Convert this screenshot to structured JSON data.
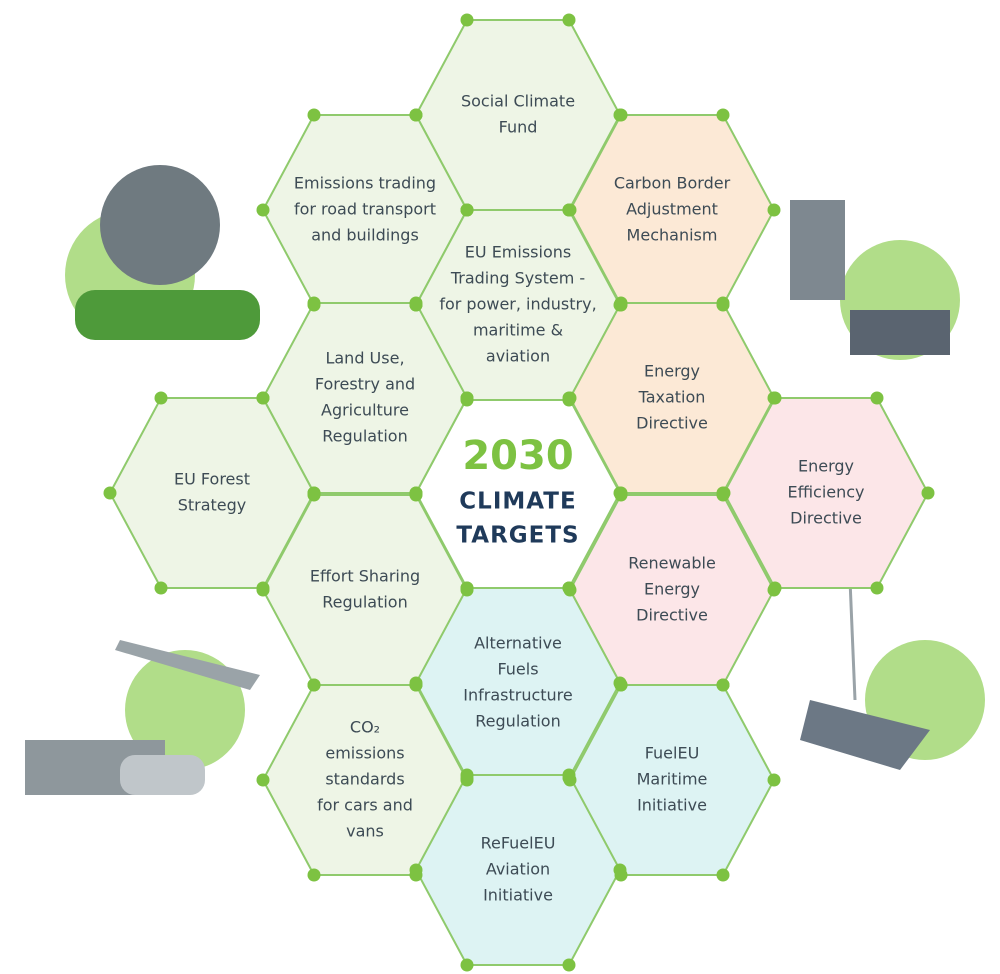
{
  "center": {
    "year": "2030",
    "lines": [
      "CLIMATE",
      "TARGETS"
    ]
  },
  "nodes": [
    {
      "lines": [
        "Social Climate",
        "Fund"
      ]
    },
    {
      "lines": [
        "Emissions trading",
        "for road transport",
        "and buildings"
      ]
    },
    {
      "lines": [
        "Carbon Border",
        "Adjustment",
        "Mechanism"
      ]
    },
    {
      "lines": [
        "EU Emissions",
        "Trading System -",
        "for power, industry,",
        "maritime &",
        "aviation"
      ]
    },
    {
      "lines": [
        "Land Use,",
        "Forestry and",
        "Agriculture",
        "Regulation"
      ]
    },
    {
      "lines": [
        "Energy",
        "Taxation",
        "Directive"
      ]
    },
    {
      "lines": [
        "EU Forest",
        "Strategy"
      ]
    },
    {
      "lines": [
        "Energy",
        "Efficiency",
        "Directive"
      ]
    },
    {
      "lines": [
        "Effort Sharing",
        "Regulation"
      ]
    },
    {
      "lines": [
        "Renewable",
        "Energy",
        "Directive"
      ]
    },
    {
      "lines": [
        "Alternative",
        "Fuels",
        "Infrastructure",
        "Regulation"
      ]
    },
    {
      "lines": [
        "CO₂",
        "emissions",
        "standards",
        "for cars and",
        "vans"
      ]
    },
    {
      "lines": [
        "FuelEU",
        "Maritime",
        "Initiative"
      ]
    },
    {
      "lines": [
        "ReFuelEU",
        "Aviation",
        "Initiative"
      ]
    }
  ]
}
